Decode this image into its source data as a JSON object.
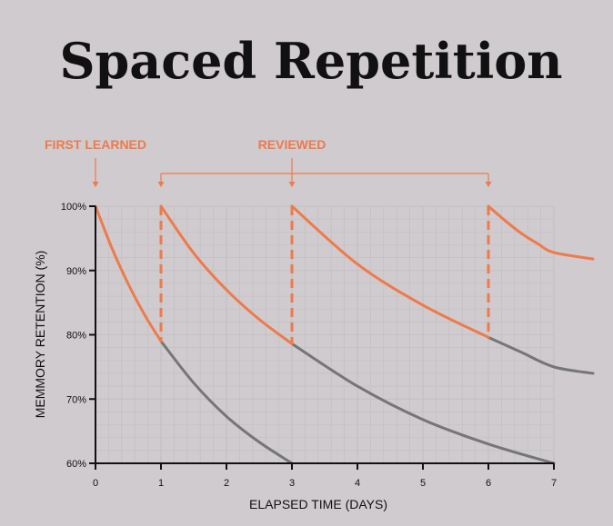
{
  "chart_data": {
    "type": "line",
    "title": "Spaced Repetition",
    "xlabel": "ELAPSED TIME (DAYS)",
    "ylabel": "MEMMORY RETENTION (%)",
    "xlim": [
      0,
      7
    ],
    "ylim": [
      60,
      100
    ],
    "x_ticks": [
      "0",
      "1",
      "2",
      "3",
      "4",
      "5",
      "6",
      "7"
    ],
    "y_ticks": [
      "60%",
      "70%",
      "80%",
      "90%",
      "100%"
    ],
    "grid": true,
    "annotations": {
      "first_learned": "FIRST LEARNED",
      "reviewed": "REVIEWED"
    },
    "review_days": [
      1,
      3,
      6
    ],
    "colors": {
      "retained": "#ef7a4a",
      "forgotten": "#767676",
      "grid": "#c3c0c3",
      "axis": "#111111"
    },
    "series": [
      {
        "status": "reviewed",
        "x": [
          0,
          0.25,
          0.5,
          0.75,
          1.0
        ],
        "y": [
          100,
          93.5,
          87.9,
          83.1,
          79.0
        ]
      },
      {
        "status": "reviewed",
        "x": [
          1,
          1.5,
          2,
          2.5,
          3.0
        ],
        "y": [
          100,
          92.7,
          87.0,
          82.4,
          78.6
        ]
      },
      {
        "status": "reviewed",
        "x": [
          3,
          4,
          5,
          6
        ],
        "y": [
          100,
          91.0,
          84.6,
          79.6
        ]
      },
      {
        "status": "reviewed",
        "x": [
          6,
          6.25,
          6.5,
          6.75,
          7.0,
          7.2
        ],
        "y": [
          100,
          97.8,
          95.8,
          94.2,
          92.8,
          91.8
        ]
      },
      {
        "status": "forgotten",
        "x": [
          1,
          1.5,
          2,
          2.5,
          3.0
        ],
        "y": [
          79.0,
          72.5,
          67.3,
          63.3,
          60.0
        ]
      },
      {
        "status": "forgotten",
        "x": [
          3,
          4,
          5,
          6,
          7.0
        ],
        "y": [
          78.6,
          72.0,
          66.8,
          63.0,
          60.0
        ]
      },
      {
        "status": "forgotten",
        "x": [
          6,
          6.5,
          7.0,
          7.2
        ],
        "y": [
          79.6,
          77.3,
          75.0,
          74.0
        ]
      }
    ]
  }
}
